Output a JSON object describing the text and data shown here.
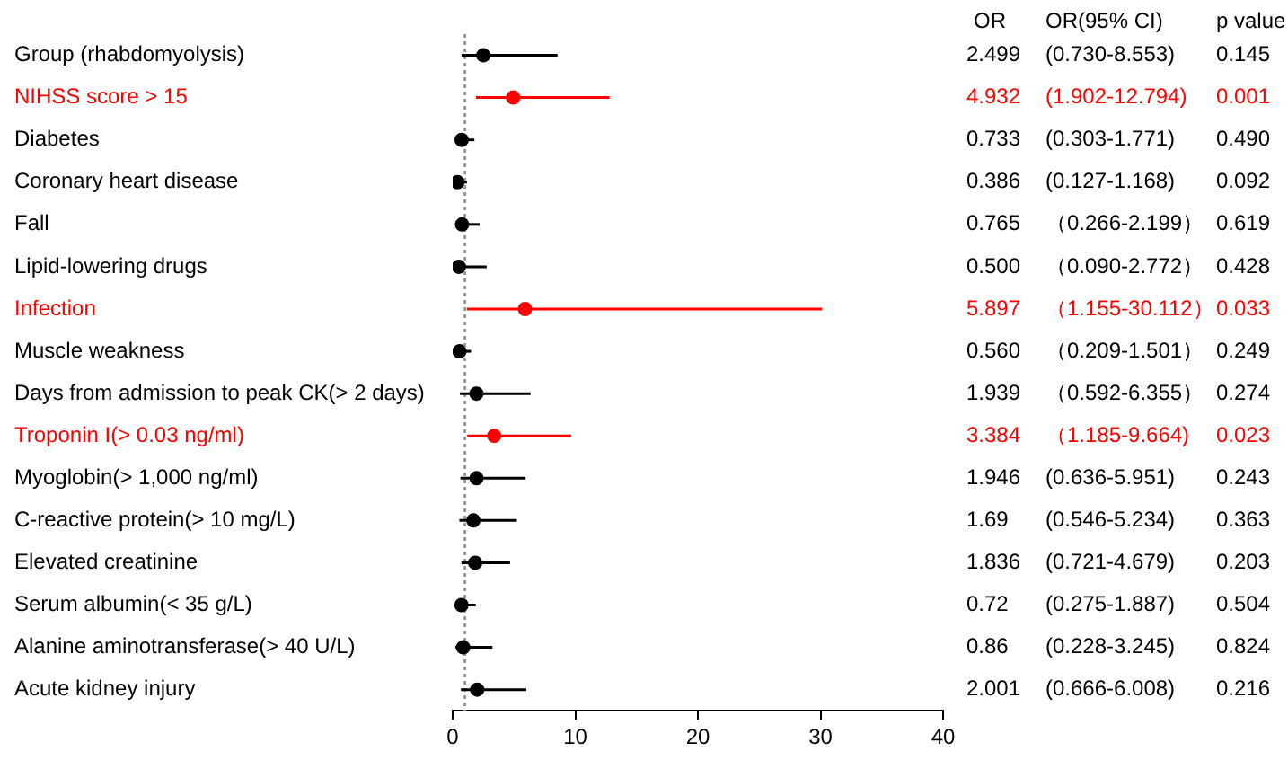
{
  "chart_data": {
    "type": "scatter",
    "orientation": "horizontal",
    "categories": [
      "Group (rhabdomyolysis)",
      "NIHSS score > 15",
      "Diabetes",
      "Coronary heart disease",
      "Fall",
      "Lipid-lowering drugs",
      "Infection",
      "Muscle weakness",
      "Days from admission to peak CK(> 2 days)",
      "Troponin I(> 0.03 ng/ml)",
      "Myoglobin(> 1,000 ng/ml)",
      "C-reactive protein(> 10 mg/L)",
      "Elevated creatinine",
      "Serum albumin(< 35 g/L)",
      "Alanine aminotransferase(> 40 U/L)",
      "Acute kidney injury"
    ],
    "values": [
      2.499,
      4.932,
      0.733,
      0.386,
      0.765,
      0.5,
      5.897,
      0.56,
      1.939,
      3.384,
      1.946,
      1.69,
      1.836,
      0.72,
      0.86,
      2.001
    ],
    "errors": [
      [
        0.73,
        8.553
      ],
      [
        1.902,
        12.794
      ],
      [
        0.303,
        1.771
      ],
      [
        0.127,
        1.168
      ],
      [
        0.266,
        2.199
      ],
      [
        0.09,
        2.772
      ],
      [
        1.155,
        30.112
      ],
      [
        0.209,
        1.501
      ],
      [
        0.592,
        6.355
      ],
      [
        1.185,
        9.664
      ],
      [
        0.636,
        5.951
      ],
      [
        0.546,
        5.234
      ],
      [
        0.721,
        4.679
      ],
      [
        0.275,
        1.887
      ],
      [
        0.228,
        3.245
      ],
      [
        0.666,
        6.008
      ]
    ],
    "colors": [
      "#000000",
      "#ff0000",
      "#000000",
      "#000000",
      "#000000",
      "#000000",
      "#ff0000",
      "#000000",
      "#000000",
      "#ff0000",
      "#000000",
      "#000000",
      "#000000",
      "#000000",
      "#000000",
      "#000000"
    ],
    "annotations": [
      "OR",
      "OR(95% CI)",
      "p value",
      "2.499",
      "(0.730-8.553)",
      "0.145",
      "4.932",
      "(1.902-12.794)",
      "0.001",
      "0.733",
      "(0.303-1.771)",
      "0.490",
      "0.386",
      "(0.127-1.168)",
      "0.092",
      "0.765",
      "（0.266-2.199）",
      "0.619",
      "0.500",
      "（0.090-2.772）",
      "0.428",
      "5.897",
      "（1.155-30.112）",
      "0.033",
      "0.560",
      "（0.209-1.501）",
      "0.249",
      "1.939",
      "（0.592-6.355）",
      "0.274",
      "3.384",
      "（1.185-9.664)",
      "0.023",
      "1.946",
      "(0.636-5.951)",
      "0.243",
      "1.69",
      "(0.546-5.234)",
      "0.363",
      "1.836",
      "(0.721-4.679)",
      "0.203",
      "0.72",
      "(0.275-1.887)",
      "0.504",
      "0.86",
      "(0.228-3.245)",
      "0.824",
      "2.001",
      "(0.666-6.008)",
      "0.216"
    ],
    "ref_lines": [
      {
        "axis": "x",
        "value": 1,
        "color": "#999999",
        "line_style": "dotted"
      }
    ],
    "xlim": [
      0,
      40
    ],
    "xticks": [
      0,
      10,
      20,
      30,
      40
    ],
    "marker": "circle",
    "grid": false,
    "legend": false
  }
}
